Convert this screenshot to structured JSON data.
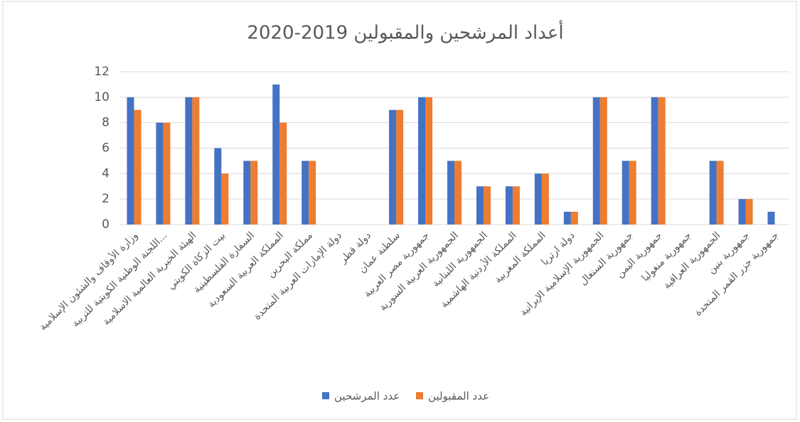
{
  "chart_data": {
    "type": "bar",
    "title": "أعداد المرشحين والمقبولين 2019-2020",
    "categories": [
      "وزارة الأوقاف والشئون الإسلامية",
      "اللجنة الوطنية الكويتية للتربية...",
      "الهيئة الخيرية العالمية الاسلامية",
      "بيت الزكاة الكويتي",
      "السفارة الفلسطينية",
      "المملكة العربية السعودية",
      "مملكة البحرين",
      "دولة الإمارات العربية المتحدة",
      "دولة قطر",
      "سلطنة عمان",
      "جمهورية مصر العربية",
      "الجمهورية العربية السورية",
      "الجمهورية اللبنانية",
      "المملكة الأردنية الهاشمية",
      "المملكة المغربية",
      "دولة ارتريا",
      "الجمهورية الإسلامية الإيرانية",
      "جمهورية السنغال",
      "جمهورية اليمن",
      "جمهورية منغوليا",
      "الجمهورية العراقية",
      "جمهورية بنين",
      "جمهورية جزر القمر المتحدة"
    ],
    "series": [
      {
        "name": "عدد المرشحين",
        "color": "#4472c4",
        "values": [
          10,
          8,
          10,
          6,
          5,
          11,
          5,
          0,
          0,
          9,
          10,
          5,
          3,
          3,
          4,
          1,
          10,
          5,
          10,
          0,
          5,
          2,
          1
        ]
      },
      {
        "name": "عدد المقبولين",
        "color": "#ed7d31",
        "values": [
          9,
          8,
          10,
          4,
          5,
          8,
          5,
          0,
          0,
          9,
          10,
          5,
          3,
          3,
          4,
          1,
          10,
          5,
          10,
          0,
          5,
          2,
          0
        ]
      }
    ],
    "ylim": [
      0,
      12
    ],
    "yticks": [
      0,
      2,
      4,
      6,
      8,
      10,
      12
    ],
    "grid": true,
    "legend": "bottom"
  }
}
